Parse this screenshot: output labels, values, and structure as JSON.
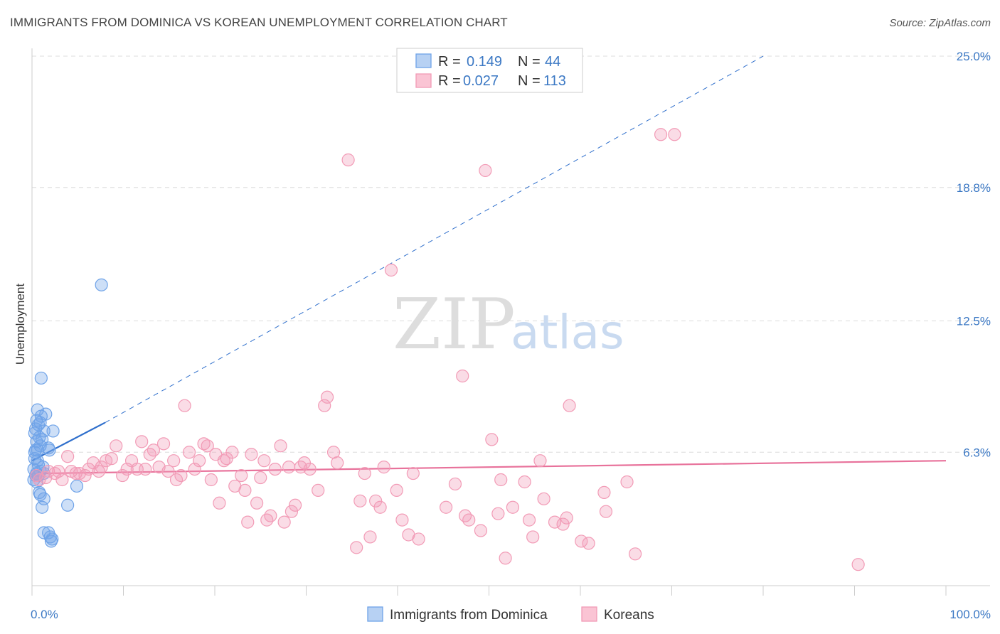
{
  "title": "IMMIGRANTS FROM DOMINICA VS KOREAN UNEMPLOYMENT CORRELATION CHART",
  "source": "Source: ZipAtlas.com",
  "watermark": {
    "zip": "ZIP",
    "atlas": "atlas"
  },
  "legend": {
    "r_label": "R = ",
    "n_label": "N = ",
    "rows": [
      {
        "r": "0.149",
        "n": "44"
      },
      {
        "r": "0.027",
        "n": "113"
      }
    ]
  },
  "chart_data": {
    "type": "scatter",
    "title": "IMMIGRANTS FROM DOMINICA VS KOREAN UNEMPLOYMENT CORRELATION CHART",
    "xlabel": "",
    "ylabel": "Unemployment",
    "xlim": [
      0,
      100
    ],
    "ylim": [
      0,
      25
    ],
    "x_tick_labels": [
      "0.0%",
      "100.0%"
    ],
    "y_ticks": [
      6.3,
      12.5,
      18.8,
      25.0
    ],
    "y_tick_labels": [
      "6.3%",
      "12.5%",
      "18.8%",
      "25.0%"
    ],
    "grid": true,
    "series": [
      {
        "name": "Immigrants from Dominica",
        "color": "#6fa3e8",
        "line_color": "#2f6fcc",
        "trend": {
          "x0": 0,
          "y0": 5.9,
          "x1": 8,
          "y1": 7.7,
          "dashed_to_x": 80,
          "dashed_to_y": 25.0
        },
        "points": [
          [
            0.6,
            8.3
          ],
          [
            1.0,
            8.0
          ],
          [
            1.5,
            8.1
          ],
          [
            0.5,
            7.8
          ],
          [
            0.9,
            7.7
          ],
          [
            0.7,
            7.6
          ],
          [
            0.4,
            7.4
          ],
          [
            1.3,
            7.3
          ],
          [
            2.3,
            7.3
          ],
          [
            0.3,
            7.2
          ],
          [
            0.8,
            7.0
          ],
          [
            1.1,
            6.9
          ],
          [
            0.5,
            6.8
          ],
          [
            0.9,
            6.6
          ],
          [
            0.6,
            6.4
          ],
          [
            1.8,
            6.5
          ],
          [
            1.9,
            6.4
          ],
          [
            0.4,
            6.4
          ],
          [
            0.3,
            6.0
          ],
          [
            0.7,
            5.7
          ],
          [
            0.2,
            5.5
          ],
          [
            0.9,
            5.4
          ],
          [
            0.5,
            5.3
          ],
          [
            1.3,
            5.3
          ],
          [
            0.7,
            5.2
          ],
          [
            0.4,
            5.2
          ],
          [
            0.2,
            5.0
          ],
          [
            0.8,
            4.4
          ],
          [
            0.9,
            4.3
          ],
          [
            1.3,
            4.1
          ],
          [
            1.1,
            3.7
          ],
          [
            4.9,
            4.7
          ],
          [
            3.9,
            3.8
          ],
          [
            1.3,
            2.5
          ],
          [
            1.8,
            2.5
          ],
          [
            2.0,
            2.3
          ],
          [
            2.2,
            2.2
          ],
          [
            2.1,
            2.1
          ],
          [
            7.6,
            14.2
          ],
          [
            1.0,
            9.8
          ],
          [
            0.6,
            5.9
          ],
          [
            0.3,
            6.3
          ],
          [
            1.2,
            5.6
          ],
          [
            0.5,
            4.9
          ]
        ]
      },
      {
        "name": "Koreans",
        "color": "#f29bb6",
        "line_color": "#e8729b",
        "trend": {
          "x0": 1,
          "y0": 5.3,
          "x1": 100,
          "y1": 5.9
        },
        "points": [
          [
            0.5,
            5.2
          ],
          [
            0.8,
            5.0
          ],
          [
            1.5,
            5.1
          ],
          [
            1.8,
            5.4
          ],
          [
            2.5,
            5.3
          ],
          [
            2.9,
            5.4
          ],
          [
            3.3,
            5.0
          ],
          [
            3.9,
            6.1
          ],
          [
            4.3,
            5.4
          ],
          [
            4.8,
            5.3
          ],
          [
            5.2,
            5.3
          ],
          [
            5.8,
            5.2
          ],
          [
            6.2,
            5.5
          ],
          [
            6.7,
            5.8
          ],
          [
            7.3,
            5.4
          ],
          [
            7.6,
            5.6
          ],
          [
            8.1,
            5.9
          ],
          [
            8.7,
            6.0
          ],
          [
            9.2,
            6.6
          ],
          [
            9.9,
            5.2
          ],
          [
            10.4,
            5.5
          ],
          [
            10.9,
            5.9
          ],
          [
            11.5,
            5.5
          ],
          [
            12.0,
            6.8
          ],
          [
            12.4,
            5.5
          ],
          [
            12.9,
            6.2
          ],
          [
            13.3,
            6.4
          ],
          [
            13.9,
            5.6
          ],
          [
            14.4,
            6.7
          ],
          [
            14.9,
            5.4
          ],
          [
            15.5,
            5.9
          ],
          [
            15.8,
            5.0
          ],
          [
            16.3,
            5.2
          ],
          [
            16.7,
            8.5
          ],
          [
            17.2,
            6.3
          ],
          [
            17.8,
            5.5
          ],
          [
            18.3,
            5.9
          ],
          [
            18.8,
            6.7
          ],
          [
            19.2,
            6.6
          ],
          [
            19.6,
            5.0
          ],
          [
            20.1,
            6.2
          ],
          [
            20.5,
            3.9
          ],
          [
            21.0,
            5.9
          ],
          [
            21.3,
            6.0
          ],
          [
            21.9,
            6.3
          ],
          [
            22.2,
            4.7
          ],
          [
            22.9,
            5.2
          ],
          [
            23.3,
            4.5
          ],
          [
            23.6,
            3.0
          ],
          [
            24.0,
            6.2
          ],
          [
            24.6,
            3.9
          ],
          [
            25.0,
            5.1
          ],
          [
            25.4,
            5.9
          ],
          [
            25.7,
            3.1
          ],
          [
            26.1,
            3.3
          ],
          [
            26.6,
            5.5
          ],
          [
            27.2,
            6.6
          ],
          [
            27.6,
            3.0
          ],
          [
            28.1,
            5.6
          ],
          [
            28.4,
            3.5
          ],
          [
            28.8,
            3.8
          ],
          [
            29.4,
            5.6
          ],
          [
            29.8,
            5.8
          ],
          [
            30.4,
            5.5
          ],
          [
            31.3,
            4.5
          ],
          [
            32.0,
            8.5
          ],
          [
            32.3,
            8.9
          ],
          [
            33.0,
            6.3
          ],
          [
            33.4,
            5.8
          ],
          [
            34.6,
            20.1
          ],
          [
            35.5,
            1.8
          ],
          [
            35.9,
            4.0
          ],
          [
            36.4,
            5.3
          ],
          [
            37.0,
            2.3
          ],
          [
            37.6,
            4.0
          ],
          [
            38.1,
            3.7
          ],
          [
            38.5,
            5.6
          ],
          [
            39.3,
            14.9
          ],
          [
            39.9,
            4.5
          ],
          [
            40.5,
            3.1
          ],
          [
            41.2,
            2.4
          ],
          [
            41.7,
            5.3
          ],
          [
            42.3,
            2.2
          ],
          [
            45.3,
            3.7
          ],
          [
            46.3,
            4.8
          ],
          [
            47.1,
            9.9
          ],
          [
            47.4,
            3.3
          ],
          [
            47.8,
            3.1
          ],
          [
            49.1,
            2.6
          ],
          [
            49.6,
            19.6
          ],
          [
            50.3,
            6.9
          ],
          [
            51.0,
            3.4
          ],
          [
            51.3,
            5.0
          ],
          [
            51.8,
            1.3
          ],
          [
            52.6,
            3.7
          ],
          [
            53.9,
            4.9
          ],
          [
            54.4,
            3.1
          ],
          [
            54.8,
            2.3
          ],
          [
            55.6,
            5.9
          ],
          [
            56.0,
            4.1
          ],
          [
            57.2,
            3.0
          ],
          [
            58.1,
            2.9
          ],
          [
            58.5,
            3.2
          ],
          [
            58.8,
            8.5
          ],
          [
            60.1,
            2.1
          ],
          [
            60.9,
            2.0
          ],
          [
            62.6,
            4.4
          ],
          [
            62.8,
            3.5
          ],
          [
            65.1,
            4.9
          ],
          [
            66.0,
            1.5
          ],
          [
            68.8,
            21.3
          ],
          [
            70.3,
            21.3
          ],
          [
            90.4,
            1.0
          ]
        ]
      }
    ]
  },
  "bottom_legend": [
    "Immigrants from Dominica",
    "Koreans"
  ]
}
